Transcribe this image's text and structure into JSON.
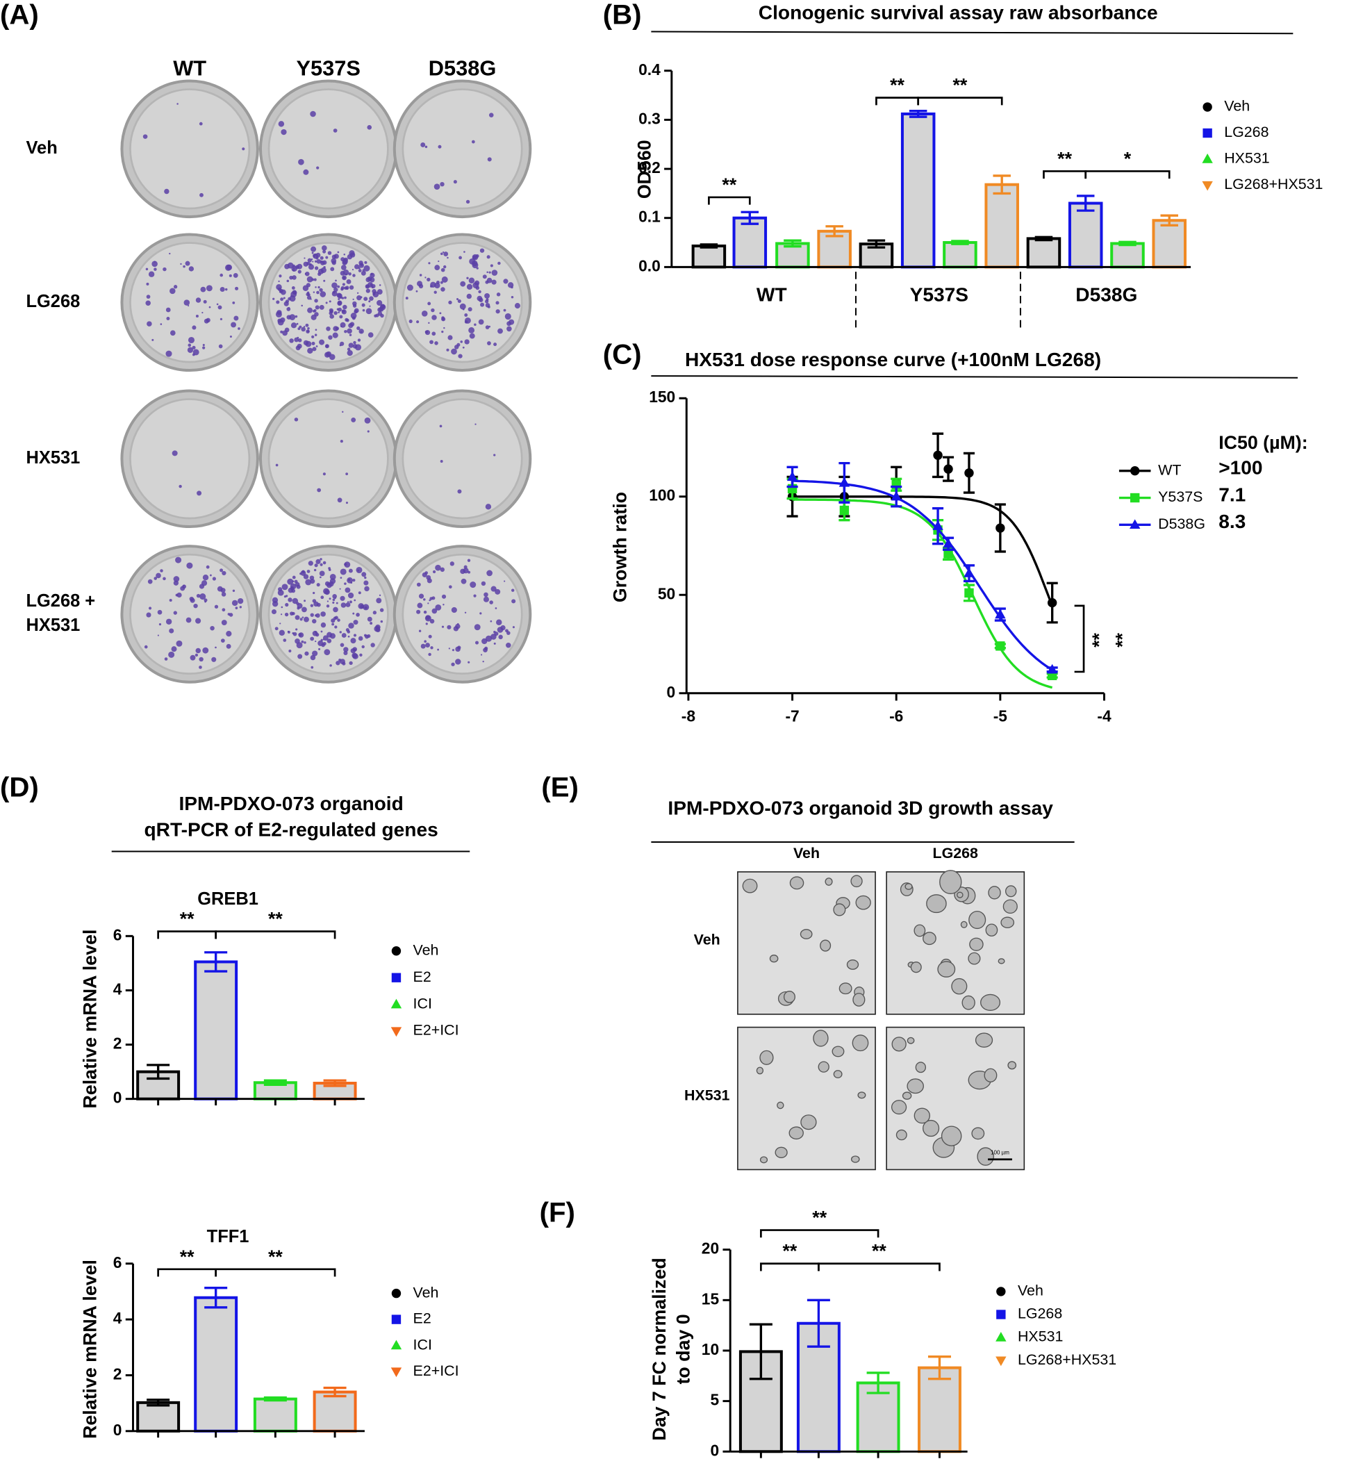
{
  "panel_a": {
    "letter": "(A)",
    "columns": [
      "WT",
      "Y537S",
      "D538G"
    ],
    "rows": [
      [
        "Veh"
      ],
      [
        "LG268"
      ],
      [
        "HX531"
      ],
      [
        "LG268 +",
        "HX531"
      ]
    ]
  },
  "panel_d": {
    "letter": "(D)",
    "title_lines": [
      "IPM-PDXO-073 organoid",
      "qRT-PCR of E2-regulated genes"
    ]
  },
  "panel_e": {
    "letter": "(E)",
    "title": "IPM-PDXO-073 organoid 3D growth assay",
    "columns": [
      "Veh",
      "LG268"
    ],
    "rows": [
      "Veh",
      "HX531"
    ],
    "scale_bar": "100 µm"
  },
  "chart_data": [
    {
      "type": "bar",
      "panel": "(B)",
      "title": "Clonogenic survival assay raw absorbance",
      "ylabel": "OD560",
      "categories": [
        "WT",
        "Y537S",
        "D538G"
      ],
      "series": [
        {
          "name": "Veh",
          "color": "#000000",
          "marker": "circle",
          "values": [
            0.043,
            0.047,
            0.058
          ],
          "errors": [
            0.003,
            0.007,
            0.003
          ]
        },
        {
          "name": "LG268",
          "color": "#1414e6",
          "marker": "square",
          "values": [
            0.1,
            0.312,
            0.13
          ],
          "errors": [
            0.012,
            0.006,
            0.015
          ]
        },
        {
          "name": "HX531",
          "color": "#22dd22",
          "marker": "triangle",
          "values": [
            0.048,
            0.05,
            0.048
          ],
          "errors": [
            0.006,
            0.003,
            0.003
          ]
        },
        {
          "name": "LG268+HX531",
          "color": "#f08a24",
          "marker": "triangle-down",
          "values": [
            0.073,
            0.168,
            0.095
          ],
          "errors": [
            0.01,
            0.018,
            0.01
          ]
        }
      ],
      "ylim": [
        0,
        0.4
      ],
      "yticks": [
        {
          "value": 0,
          "label": "0.0"
        },
        0.1,
        0.2,
        0.3,
        0.4
      ],
      "annotations": [
        "**",
        "**",
        "**",
        "**",
        "*"
      ]
    },
    {
      "type": "line",
      "panel": "(C)",
      "title": "HX531 dose response curve (+100nM LG268)",
      "ylabel": "Growth ratio",
      "legend_title": "IC50 (µM):",
      "x": [
        -7,
        -6.5,
        -6,
        -5.6,
        -5.5,
        -5.3,
        -5,
        -4.5
      ],
      "series": [
        {
          "name": "WT",
          "color": "#000000",
          "marker": "circle",
          "ic50": ">100",
          "values": [
            100,
            100,
            107,
            121,
            114,
            112,
            84,
            46
          ],
          "errors": [
            10,
            10,
            8,
            11,
            6,
            10,
            12,
            10
          ]
        },
        {
          "name": "Y537S",
          "color": "#22dd22",
          "marker": "square",
          "ic50": "7.1",
          "values": [
            104,
            93,
            106,
            83,
            71,
            51,
            24,
            9
          ],
          "errors": [
            5,
            5,
            3,
            5,
            3,
            4,
            1,
            1
          ]
        },
        {
          "name": "D538G",
          "color": "#1414e6",
          "marker": "triangle",
          "ic50": "8.3",
          "values": [
            110,
            107,
            100,
            85,
            76,
            61,
            40,
            12
          ],
          "errors": [
            5,
            10,
            5,
            9,
            3,
            4,
            3,
            1
          ]
        }
      ],
      "xlim": [
        -8,
        -4
      ],
      "xticks": [
        -8,
        -7,
        -6,
        -5,
        -4
      ],
      "ylim": [
        0,
        150
      ],
      "yticks": [
        0,
        50,
        100,
        150
      ],
      "annotations": [
        "**",
        "**"
      ]
    },
    {
      "type": "bar",
      "title": "GREB1",
      "ylabel": "Relative mRNA level",
      "categories": [
        "Veh",
        "E2",
        "ICI",
        "E2+ICI"
      ],
      "colors": [
        "#000000",
        "#1414e6",
        "#22dd22",
        "#f26a1b"
      ],
      "markers": [
        "circle",
        "square",
        "triangle",
        "triangle-down"
      ],
      "values": [
        1.0,
        5.05,
        0.6,
        0.58
      ],
      "errors": [
        0.25,
        0.35,
        0.08,
        0.1
      ],
      "ylim": [
        0,
        6
      ],
      "yticks": [
        0,
        2,
        4,
        6
      ],
      "annotations": [
        "**",
        "**"
      ]
    },
    {
      "type": "bar",
      "title": "TFF1",
      "ylabel": "Relative mRNA level",
      "categories": [
        "Veh",
        "E2",
        "ICI",
        "E2+ICI"
      ],
      "colors": [
        "#000000",
        "#1414e6",
        "#22dd22",
        "#f26a1b"
      ],
      "markers": [
        "circle",
        "square",
        "triangle",
        "triangle-down"
      ],
      "values": [
        1.02,
        4.78,
        1.15,
        1.4
      ],
      "errors": [
        0.1,
        0.35,
        0.05,
        0.15
      ],
      "ylim": [
        0,
        6
      ],
      "yticks": [
        0,
        2,
        4,
        6
      ],
      "annotations": [
        "**",
        "**"
      ]
    },
    {
      "type": "bar",
      "panel": "(F)",
      "ylabel": [
        "Day 7 FC normalized",
        "to day 0"
      ],
      "categories": [
        "Veh",
        "LG268",
        "HX531",
        "LG268+HX531"
      ],
      "colors": [
        "#000000",
        "#1414e6",
        "#22dd22",
        "#f08a24"
      ],
      "markers": [
        "circle",
        "square",
        "triangle",
        "triangle-down"
      ],
      "values": [
        9.9,
        12.7,
        6.8,
        8.3
      ],
      "errors": [
        2.7,
        2.3,
        1.0,
        1.1
      ],
      "ylim": [
        0,
        20
      ],
      "yticks": [
        0,
        5,
        10,
        15,
        20
      ],
      "annotations": [
        "**",
        "**",
        "**"
      ]
    }
  ]
}
